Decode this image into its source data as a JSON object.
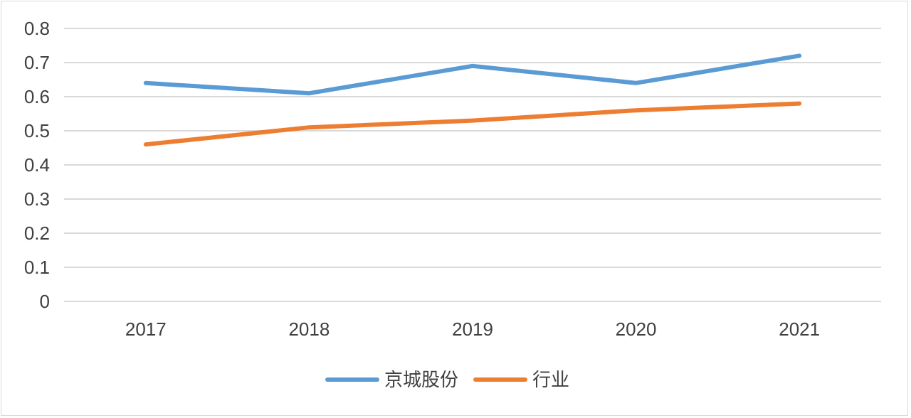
{
  "chart_data": {
    "type": "line",
    "categories": [
      "2017",
      "2018",
      "2019",
      "2020",
      "2021"
    ],
    "series": [
      {
        "name": "京城股份",
        "values": [
          0.64,
          0.61,
          0.69,
          0.64,
          0.72
        ],
        "color": "#5b9bd5"
      },
      {
        "name": "行业",
        "values": [
          0.46,
          0.51,
          0.53,
          0.56,
          0.58
        ],
        "color": "#ed7d31"
      }
    ],
    "ylim": [
      0,
      0.8
    ],
    "yticks": [
      "0",
      "0.1",
      "0.2",
      "0.3",
      "0.4",
      "0.5",
      "0.6",
      "0.7",
      "0.8"
    ],
    "grid": true,
    "gridColor": "#d9d9d9",
    "legend": "bottom"
  }
}
